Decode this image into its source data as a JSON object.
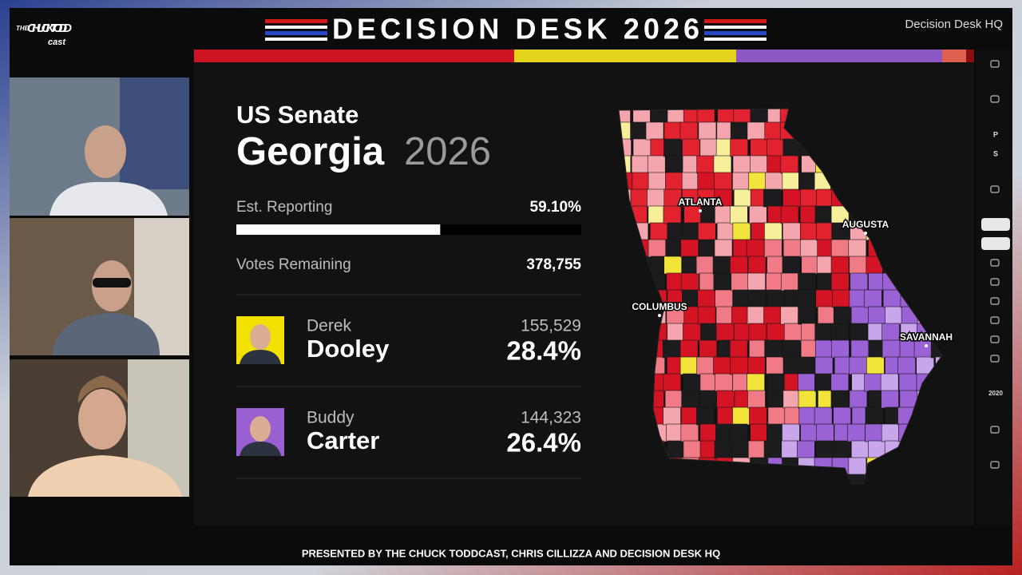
{
  "header": {
    "logo_top": "THE",
    "logo_main": "CHUCK TODD",
    "logo_suffix": "cast",
    "title": "DECISION DESK 2026",
    "brand": "Decision Desk HQ"
  },
  "race": {
    "office": "US Senate",
    "state": "Georgia",
    "year": "2026",
    "reporting_label": "Est. Reporting",
    "reporting": {
      "value": 59.1,
      "label": "59.10%"
    },
    "votes_remaining_label": "Votes Remaining",
    "votes_remaining": "378,755",
    "candidates": [
      {
        "first": "Derek",
        "last": "Dooley",
        "votes": "155,529",
        "pct": "28.4%",
        "color": "#f2e000"
      },
      {
        "first": "Buddy",
        "last": "Carter",
        "votes": "144,323",
        "pct": "26.4%",
        "color": "#9a5fd0"
      }
    ]
  },
  "map": {
    "cities": [
      "ATLANTA",
      "AUGUSTA",
      "COLUMBUS",
      "SAVANNAH"
    ]
  },
  "sidebar": {
    "labels": [
      "P",
      "S",
      "2020"
    ]
  },
  "footer": {
    "text": "PRESENTED BY THE CHUCK TODDCAST, CHRIS CILLIZZA AND DECISION DESK HQ"
  }
}
